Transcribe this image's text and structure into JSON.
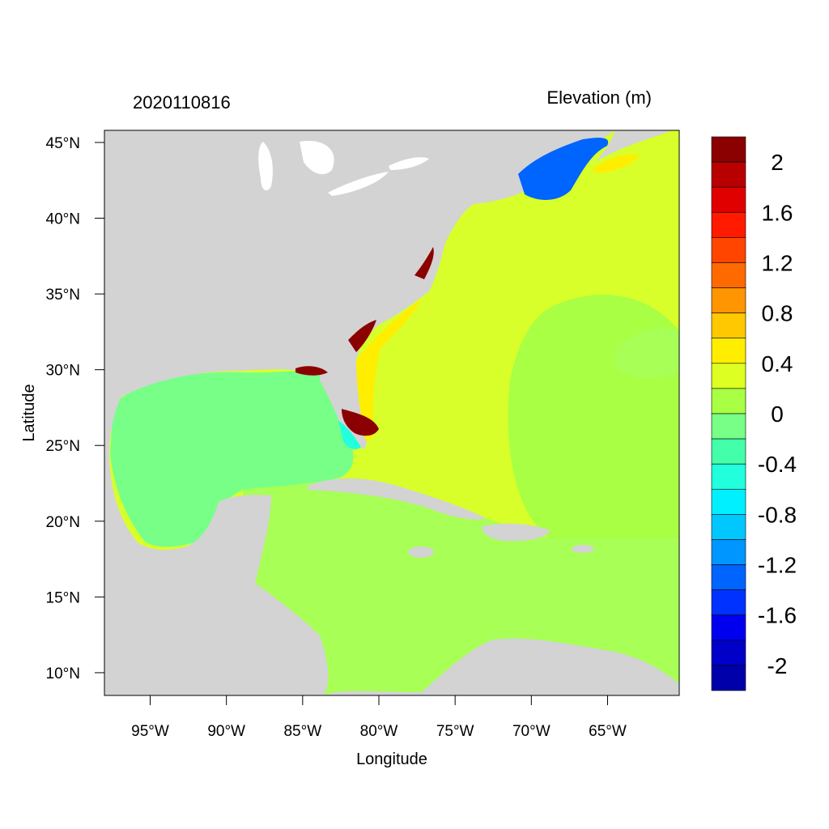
{
  "header": {
    "left_title": "2020110816",
    "right_title": "Elevation (m)"
  },
  "axes": {
    "xlabel": "Longitude",
    "ylabel": "Latitude",
    "lat_ticks": [
      "45°N",
      "40°N",
      "35°N",
      "30°N",
      "25°N",
      "20°N",
      "15°N",
      "10°N"
    ],
    "lon_ticks": [
      "95°W",
      "90°W",
      "85°W",
      "80°W",
      "75°W",
      "70°W",
      "65°W"
    ],
    "lat_values": [
      45,
      40,
      35,
      30,
      25,
      20,
      15,
      10
    ],
    "lon_values": [
      -95,
      -90,
      -85,
      -80,
      -75,
      -70,
      -65
    ],
    "lon_range": [
      -98,
      -60.3
    ],
    "lat_range": [
      8.5,
      45.8
    ]
  },
  "colorbar": {
    "colors": [
      "#8b0000",
      "#b80000",
      "#e00000",
      "#ff1a00",
      "#ff4500",
      "#ff6a00",
      "#ff9500",
      "#ffc800",
      "#ffee00",
      "#ddff22",
      "#a8ff44",
      "#77ff88",
      "#44ffaa",
      "#22ffdd",
      "#00f0ff",
      "#00c8ff",
      "#0096ff",
      "#0064ff",
      "#0032ff",
      "#0000ee",
      "#0000c8",
      "#0000aa"
    ],
    "labels": [
      "2",
      "1.6",
      "1.2",
      "0.8",
      "0.4",
      "0",
      "-0.4",
      "-0.8",
      "-1.2",
      "-1.6",
      "-2"
    ]
  },
  "map_colors": {
    "land": "#d3d3d3",
    "lakes": "#ffffff",
    "atlantic": "#d8ff2a",
    "caribbean": "#a8ff55",
    "gulf": "#77ff88",
    "midocean": "#a8ff44",
    "positive_surge": "#ffee00",
    "flooded_coast": "#8b0000",
    "negative_surge": "#0064ff"
  }
}
